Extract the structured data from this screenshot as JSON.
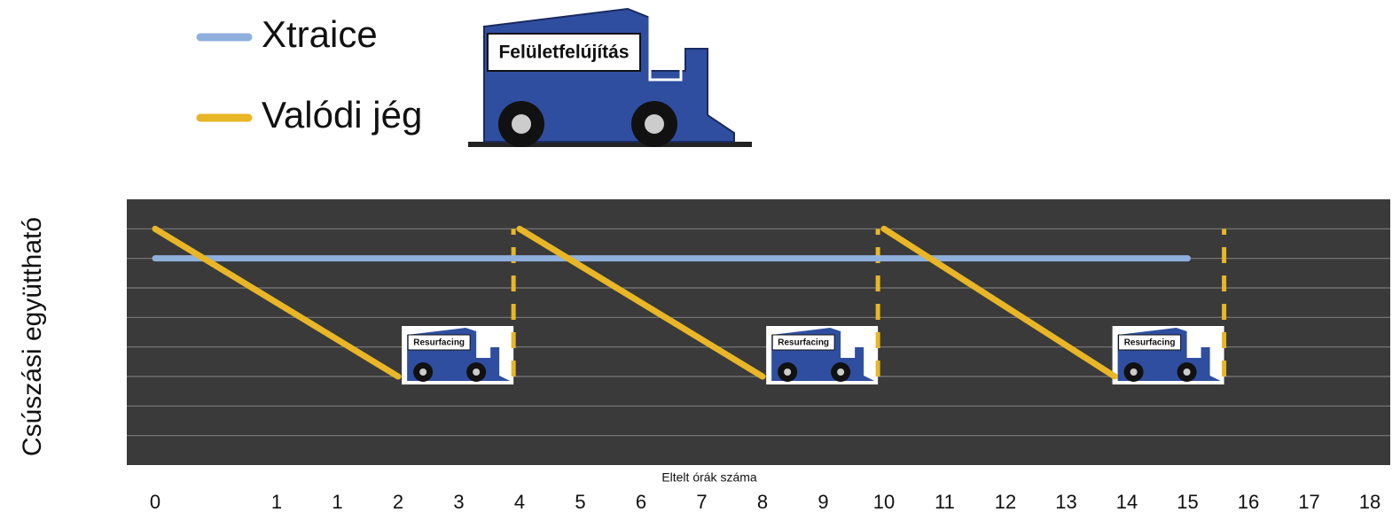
{
  "chart_data": {
    "type": "line",
    "legend_icon_label": "Felületfelújítás",
    "y_label": "Csúszási együttható",
    "x_label": "Eltelt órák száma",
    "categories": [
      "0",
      null,
      "1",
      "1",
      "2",
      "3",
      "4",
      "5",
      "6",
      "7",
      "8",
      "9",
      "10",
      "11",
      "12",
      "13",
      "14",
      "15",
      "16",
      "17",
      "18"
    ],
    "xlim": [
      0,
      20
    ],
    "ylim": [
      0,
      9
    ],
    "gridlines": [
      1,
      2,
      3,
      4,
      5,
      6,
      7,
      8
    ],
    "background": "#3a3a3a",
    "series": [
      {
        "name": "Xtraice",
        "color": "#8fb0dc",
        "x": [
          0,
          17
        ],
        "values": [
          7,
          7
        ]
      },
      {
        "name": "Valódi jég",
        "color": "#e8b626",
        "x": [
          0,
          4,
          null,
          6,
          10,
          null,
          12,
          15.8
        ],
        "values": [
          8,
          3,
          null,
          8,
          3,
          null,
          8,
          3
        ]
      }
    ],
    "resurfacing": {
      "label": "Resurfacing",
      "x": [
        5.9,
        11.9,
        17.6
      ],
      "from": 3,
      "to": 8,
      "color": "#e8b626"
    }
  }
}
